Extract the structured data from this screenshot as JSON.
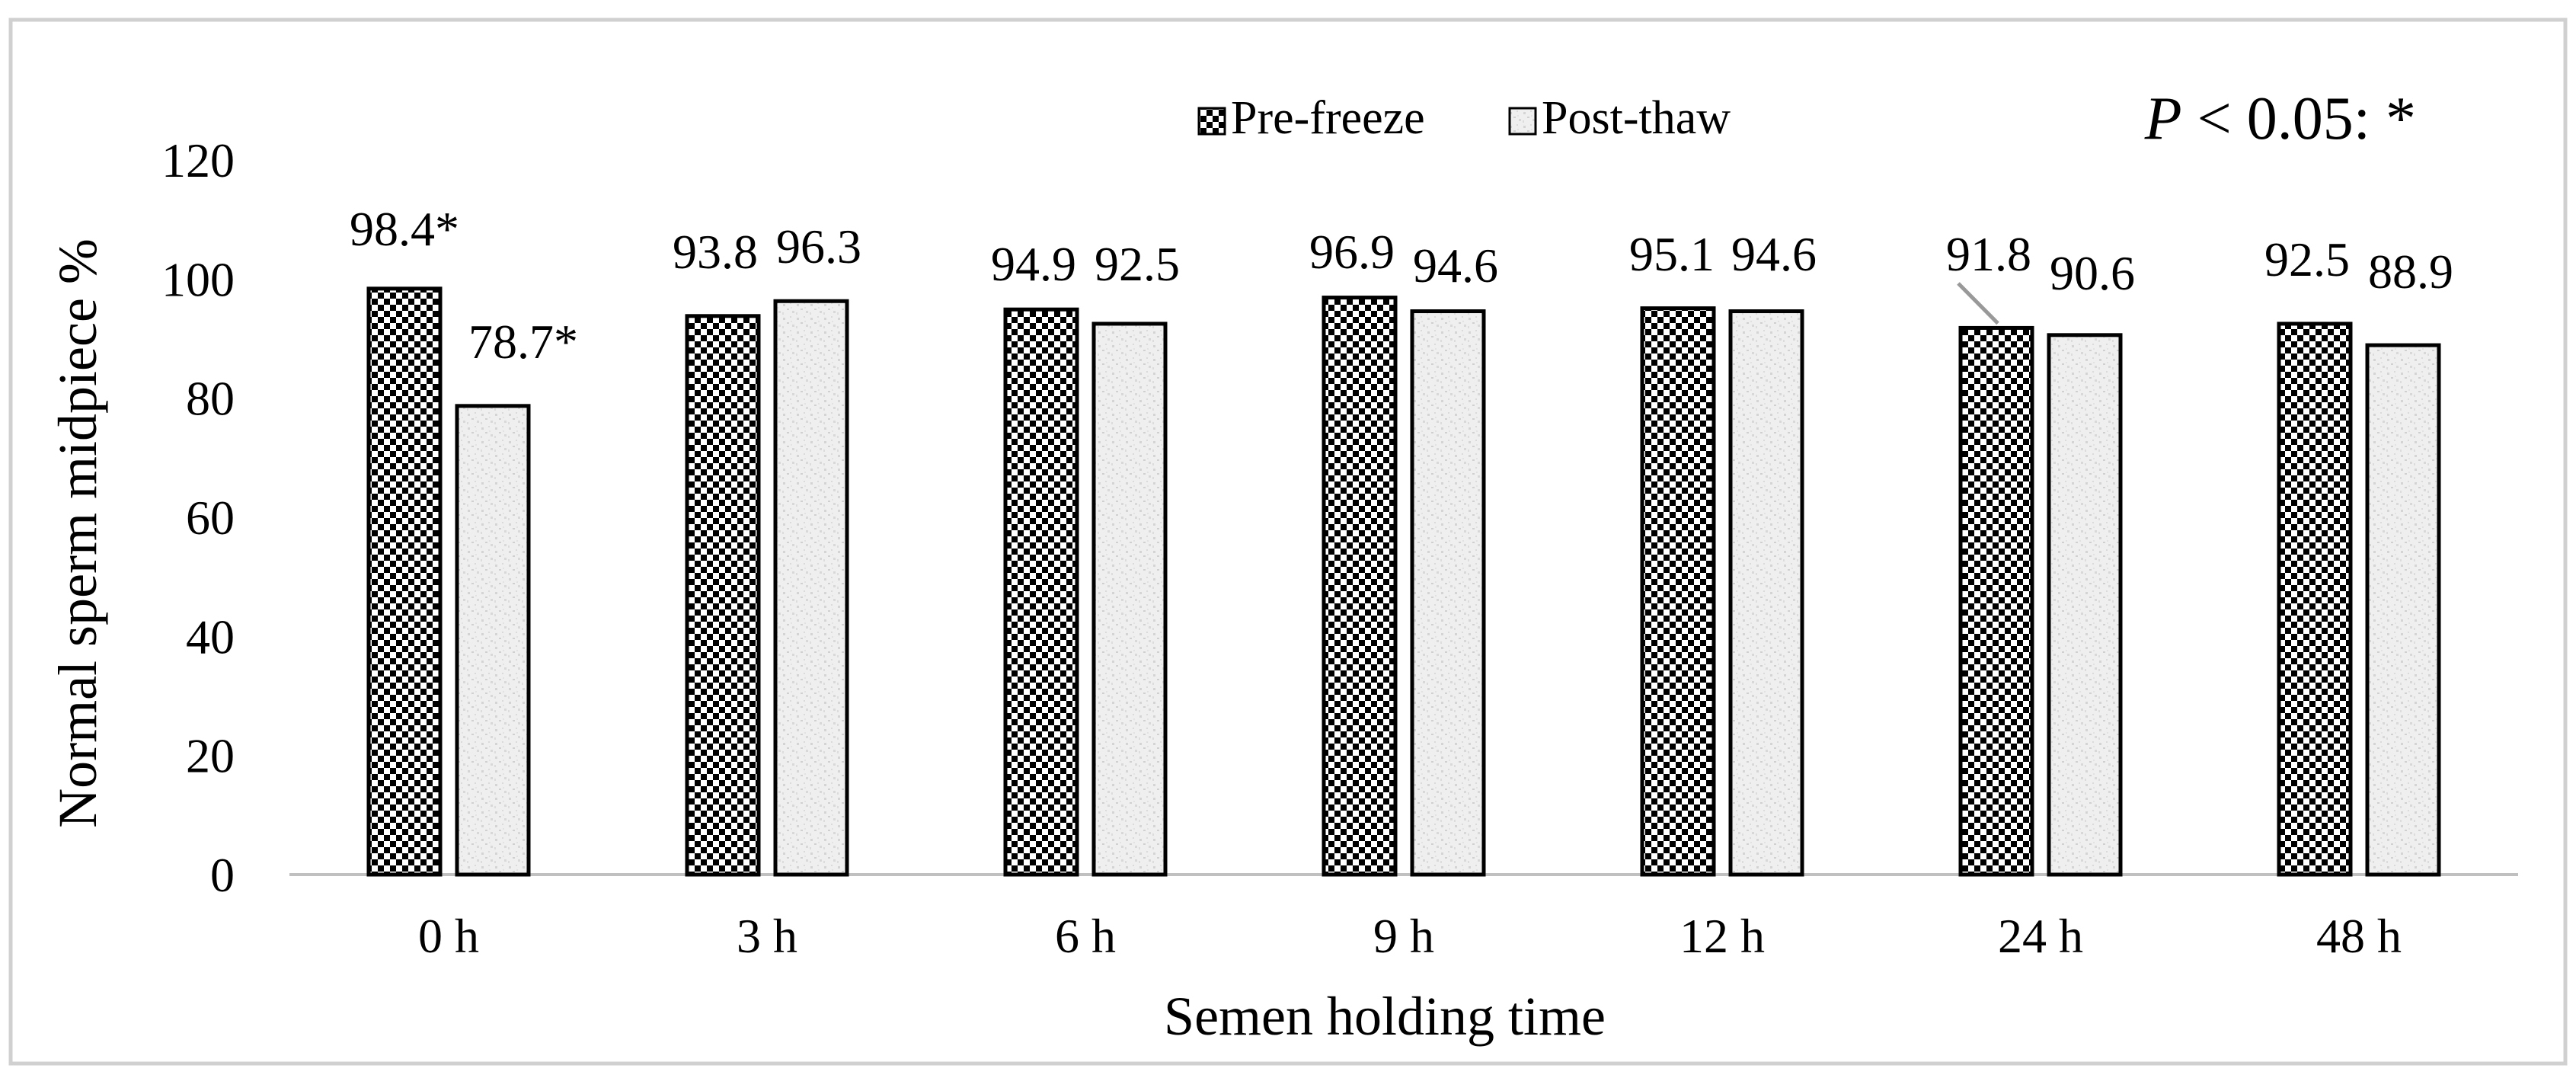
{
  "chart_data": {
    "type": "bar",
    "title": "",
    "xlabel": "Semen holding time",
    "ylabel": "Normal sperm midpiece %",
    "ylim": [
      0,
      120
    ],
    "yticks": [
      "0",
      "20",
      "40",
      "60",
      "80",
      "100",
      "120"
    ],
    "categories": [
      "0 h",
      "3 h",
      "6 h",
      "9 h",
      "12 h",
      "24 h",
      "48 h"
    ],
    "series": [
      {
        "name": "Pre-freeze",
        "values": [
          98.4,
          93.8,
          94.9,
          96.9,
          95.1,
          91.8,
          92.5
        ],
        "labels": [
          "98.4*",
          "93.8",
          "94.9",
          "96.9",
          "95.1",
          "91.8",
          "92.5"
        ],
        "pattern": "checkerboard"
      },
      {
        "name": "Post-thaw",
        "values": [
          78.7,
          96.3,
          92.5,
          94.6,
          94.6,
          90.6,
          88.9
        ],
        "labels": [
          "78.7*",
          "96.3",
          "92.5",
          "94.6",
          "94.6",
          "90.6",
          "88.9"
        ],
        "pattern": "light-gray-speckle"
      }
    ],
    "annotation": {
      "italic_part": "P",
      "rest": " < 0.05: *"
    },
    "legend_position": "top-right",
    "grid": false,
    "colors": {
      "frame_border": "#d0d0d0",
      "checker_dark": "#000000",
      "checker_light": "#ffffff",
      "speckle_base": "#efefef",
      "speckle_dots": "#d6d6d6",
      "bar_outline": "#000000",
      "axis": "#c0c0c0",
      "leader_line": "#999999"
    }
  }
}
